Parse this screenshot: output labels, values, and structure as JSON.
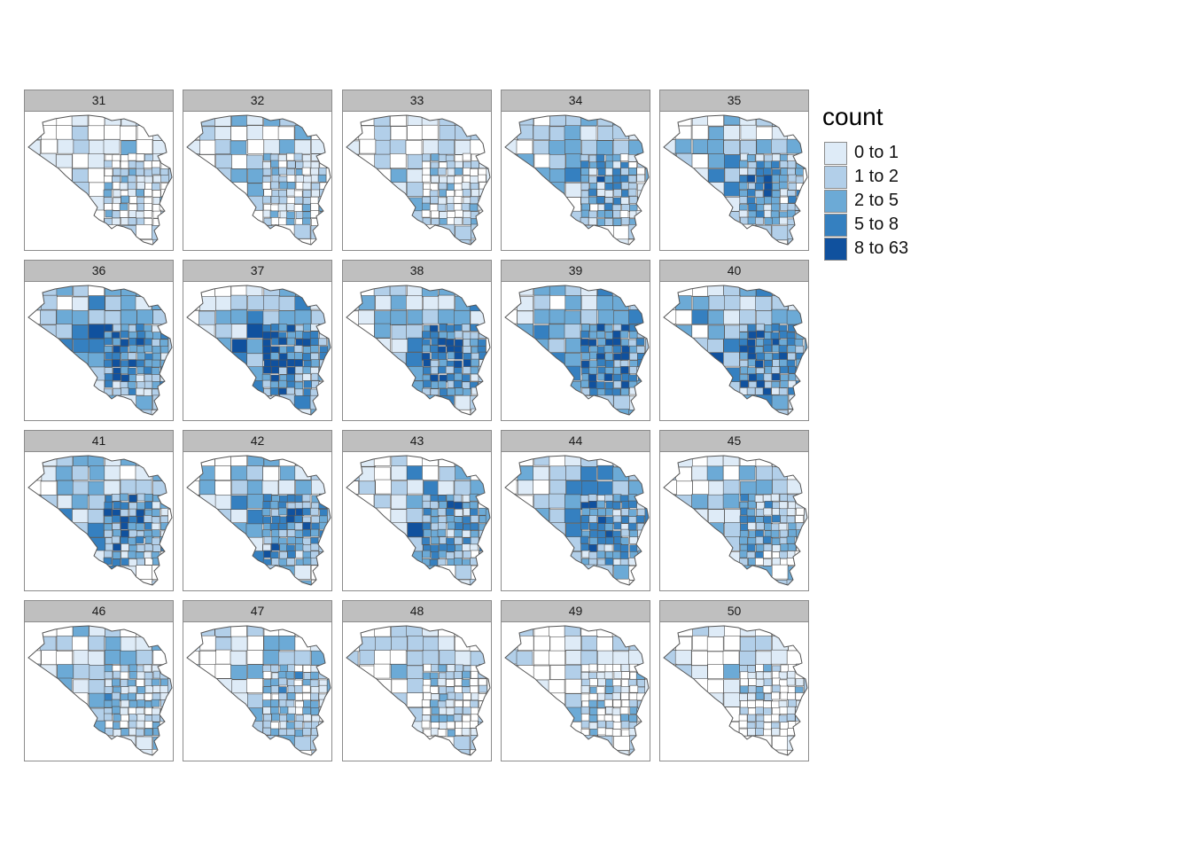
{
  "legend": {
    "title": "count",
    "classes": [
      {
        "label": "0 to 1",
        "color": "#deebf7"
      },
      {
        "label": "1 to 2",
        "color": "#b2cfe9"
      },
      {
        "label": "2 to 5",
        "color": "#6caad6"
      },
      {
        "label": "5 to 8",
        "color": "#3580c0"
      },
      {
        "label": "8 to 63",
        "color": "#10519e"
      }
    ],
    "empty_color": "#ffffff"
  },
  "border_color": "#555555",
  "panels": [
    {
      "label": "31",
      "intensity": 0.12
    },
    {
      "label": "32",
      "intensity": 0.22
    },
    {
      "label": "33",
      "intensity": 0.2
    },
    {
      "label": "34",
      "intensity": 0.42
    },
    {
      "label": "35",
      "intensity": 0.45
    },
    {
      "label": "36",
      "intensity": 0.62
    },
    {
      "label": "37",
      "intensity": 0.66
    },
    {
      "label": "38",
      "intensity": 0.64
    },
    {
      "label": "39",
      "intensity": 0.7
    },
    {
      "label": "40",
      "intensity": 0.68
    },
    {
      "label": "41",
      "intensity": 0.55
    },
    {
      "label": "42",
      "intensity": 0.58
    },
    {
      "label": "43",
      "intensity": 0.52
    },
    {
      "label": "44",
      "intensity": 0.54
    },
    {
      "label": "45",
      "intensity": 0.4
    },
    {
      "label": "46",
      "intensity": 0.32
    },
    {
      "label": "47",
      "intensity": 0.3
    },
    {
      "label": "48",
      "intensity": 0.16
    },
    {
      "label": "49",
      "intensity": 0.12
    },
    {
      "label": "50",
      "intensity": 0.12
    }
  ]
}
